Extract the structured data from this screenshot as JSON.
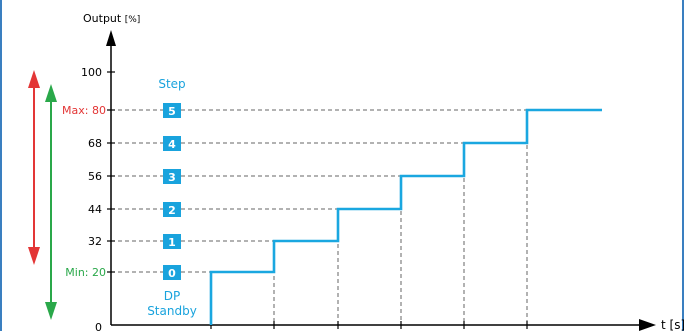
{
  "diagram": {
    "y_axis_label": "Output",
    "y_axis_unit": "[%]",
    "x_axis_label": "t [s]",
    "y_ticks": [
      "100",
      "80",
      "68",
      "56",
      "44",
      "32",
      "20",
      "0"
    ],
    "max_label": "Max: 80",
    "min_label": "Min: 20",
    "step_header": "Step",
    "steps": [
      "5",
      "4",
      "3",
      "2",
      "1",
      "0"
    ],
    "standby_line1": "DP",
    "standby_line2": "Standby"
  },
  "colors": {
    "axis": "#000000",
    "step_line": "#1aa7e0",
    "step_box": "#19a3dd",
    "step_header": "#19a3dd",
    "max": "#e33636",
    "min": "#2aa84a",
    "dashed": "#666666",
    "frame": "#3a7fc0"
  }
}
